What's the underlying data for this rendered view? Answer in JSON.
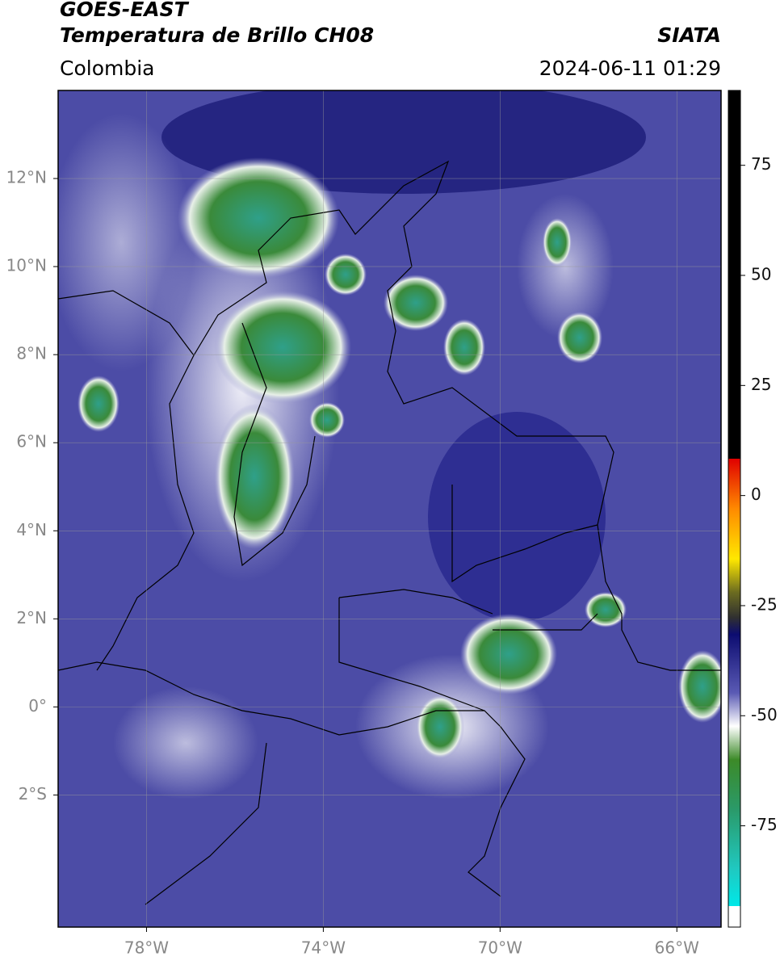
{
  "header": {
    "title": "GOES-EAST",
    "subtitle": "Temperatura de Brillo CH08",
    "region": "Colombia",
    "source": "SIATA",
    "datetime": "2024-06-11 01:29"
  },
  "map": {
    "xlim": [
      -80,
      -65
    ],
    "ylim": [
      -5,
      14
    ],
    "xticks": [
      {
        "value": -78,
        "label": "78°W"
      },
      {
        "value": -74,
        "label": "74°W"
      },
      {
        "value": -70,
        "label": "70°W"
      },
      {
        "value": -66,
        "label": "66°W"
      }
    ],
    "yticks": [
      {
        "value": 12,
        "label": "12°N"
      },
      {
        "value": 10,
        "label": "10°N"
      },
      {
        "value": 8,
        "label": "8°N"
      },
      {
        "value": 6,
        "label": "6°N"
      },
      {
        "value": 4,
        "label": "4°N"
      },
      {
        "value": 2,
        "label": "2°N"
      },
      {
        "value": 0,
        "label": "0°"
      },
      {
        "value": -2,
        "label": "2°S"
      }
    ],
    "grid": true
  },
  "colorbar": {
    "lim": [
      -98,
      92
    ],
    "ticks": [
      75,
      50,
      25,
      0,
      -25,
      -50,
      -75
    ]
  }
}
